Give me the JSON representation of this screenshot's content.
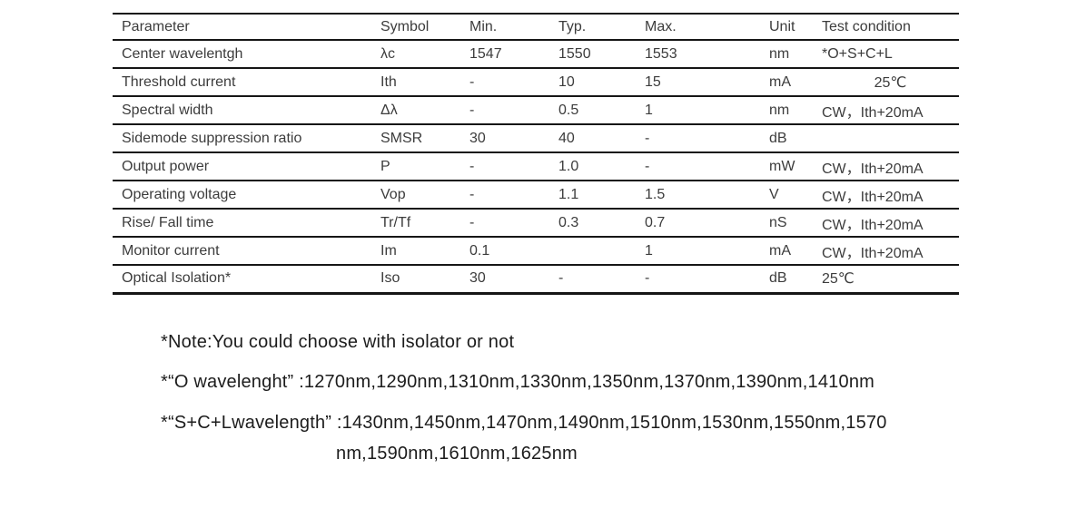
{
  "table": {
    "columns": [
      "Parameter",
      "Symbol",
      "Min.",
      "Typ.",
      "Max.",
      "Unit",
      "Test condition"
    ],
    "rows": [
      {
        "cells": [
          "Center wavelentgh",
          "λc",
          "1547",
          "1550",
          "1553",
          "nm",
          "*O+S+C+L"
        ],
        "tc_align": "left"
      },
      {
        "cells": [
          "Threshold current",
          "Ith",
          "-",
          "10",
          "15",
          "mA",
          "25℃"
        ],
        "tc_align": "center"
      },
      {
        "cells": [
          "Spectral width",
          "Δλ",
          "-",
          "0.5",
          "1",
          "nm",
          "CW，Ith+20mA"
        ],
        "tc_align": "left"
      },
      {
        "cells": [
          "Sidemode suppression ratio",
          "SMSR",
          "30",
          "40",
          "-",
          "dB",
          ""
        ],
        "tc_align": "left"
      },
      {
        "cells": [
          "Output power",
          "P",
          "-",
          "1.0",
          "-",
          "mW",
          "CW，Ith+20mA"
        ],
        "tc_align": "left"
      },
      {
        "cells": [
          "Operating voltage",
          "Vop",
          "-",
          "1.1",
          "1.5",
          "V",
          "CW，Ith+20mA"
        ],
        "tc_align": "left"
      },
      {
        "cells": [
          "Rise/ Fall time",
          "Tr/Tf",
          "-",
          "0.3",
          "0.7",
          "nS",
          "CW，Ith+20mA"
        ],
        "tc_align": "left"
      },
      {
        "cells": [
          "Monitor current",
          "Im",
          "0.1",
          "",
          "1",
          "mA",
          "CW，Ith+20mA"
        ],
        "tc_align": "left"
      },
      {
        "cells": [
          "Optical Isolation*",
          "Iso",
          "30",
          "-",
          "-",
          "dB",
          "25℃"
        ],
        "tc_align": "left"
      }
    ]
  },
  "notes": {
    "note1": "*Note:You could choose with isolator or not",
    "note2": "*“O wavelenght” :1270nm,1290nm,1310nm,1330nm,1350nm,1370nm,1390nm,1410nm",
    "note3_line1": "*“S+C+Lwavelength”  :1430nm,1450nm,1470nm,1490nm,1510nm,1530nm,1550nm,1570",
    "note3_line2": "nm,1590nm,1610nm,1625nm"
  },
  "colors": {
    "background": "#ffffff",
    "table_text": "#3c3c3c",
    "table_line": "#161616",
    "note_text": "#1c1c1c"
  }
}
